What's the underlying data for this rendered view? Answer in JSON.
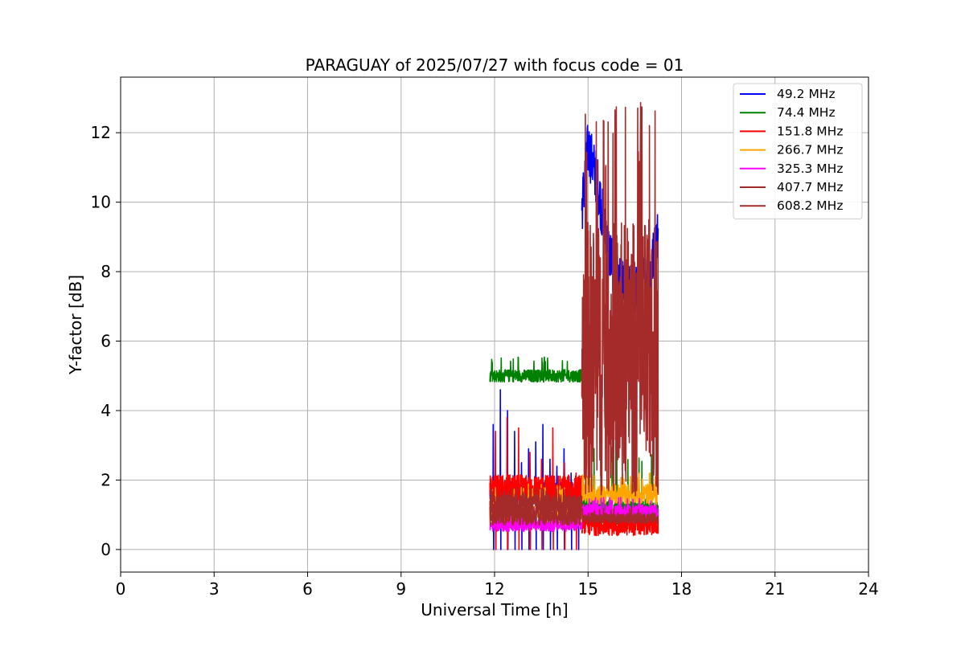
{
  "chart_data": {
    "type": "line",
    "title": "PARAGUAY of 2025/07/27 with focus code = 01",
    "xlabel": "Universal Time [h]",
    "ylabel": "Y-factor [dB]",
    "xlim": [
      0,
      24
    ],
    "ylim": [
      -0.65,
      13.6
    ],
    "xticks": [
      0,
      3,
      6,
      9,
      12,
      15,
      18,
      21,
      24
    ],
    "yticks": [
      0,
      2,
      4,
      6,
      8,
      10,
      12
    ],
    "grid": true,
    "legend_position": "top-right",
    "series": [
      {
        "name": " 49.2 MHz",
        "color": "#0000ff",
        "segments": [
          {
            "x_range": [
              11.85,
              14.8
            ],
            "base": 1.6,
            "noise": 0.35,
            "spikes": [
              3.6,
              4.6,
              4.0,
              3.4,
              2.5,
              2.9,
              3.1,
              3.6,
              2.6,
              2.4,
              2.9,
              2.2,
              1.9
            ],
            "spike_min": 0.0
          },
          {
            "x_range": [
              14.8,
              17.25
            ],
            "profile": [
              [
                14.8,
                9.8
              ],
              [
                15.0,
                11.6
              ],
              [
                15.3,
                10.6
              ],
              [
                15.6,
                8.8
              ],
              [
                16.0,
                7.6
              ],
              [
                16.5,
                7.4
              ],
              [
                17.0,
                8.0
              ],
              [
                17.25,
                9.1
              ]
            ],
            "noise": 0.8
          }
        ]
      },
      {
        "name": " 74.4 MHz",
        "color": "#008000",
        "segments": [
          {
            "x_range": [
              11.85,
              14.8
            ],
            "base": 5.0,
            "noise": 0.18,
            "peak": 5.55
          },
          {
            "x_range": [
              14.8,
              17.25
            ],
            "base": 1.1,
            "noise": 0.4,
            "peak": 3.1
          }
        ]
      },
      {
        "name": " 151.8 MHz",
        "color": "#ff0000",
        "segments": [
          {
            "x_range": [
              11.85,
              14.8
            ],
            "base": 1.7,
            "noise": 0.45,
            "spikes": [
              3.4,
              3.8,
              3.5,
              2.8,
              2.6,
              3.5,
              2.5,
              2.2
            ],
            "spike_min": 0.0
          },
          {
            "x_range": [
              14.8,
              17.25
            ],
            "base": 0.7,
            "noise": 0.3,
            "peak": 1.2
          }
        ]
      },
      {
        "name": " 266.7 MHz",
        "color": "#ffa500",
        "segments": [
          {
            "x_range": [
              11.85,
              14.8
            ],
            "base": 1.1,
            "noise": 0.25,
            "peak": 1.9
          },
          {
            "x_range": [
              14.8,
              17.25
            ],
            "base": 1.6,
            "noise": 0.3,
            "peak": 2.2
          }
        ]
      },
      {
        "name": " 325.3 MHz",
        "color": "#ff00ff",
        "segments": [
          {
            "x_range": [
              11.85,
              14.8
            ],
            "base": 0.7,
            "noise": 0.18,
            "peak": 1.2
          },
          {
            "x_range": [
              14.8,
              17.25
            ],
            "base": 1.1,
            "noise": 0.2,
            "peak": 1.5
          }
        ]
      },
      {
        "name": " 407.7 MHz",
        "color": "#a52a2a",
        "segments": [
          {
            "x_range": [
              11.85,
              14.8
            ],
            "base": 1.3,
            "noise": 0.3,
            "peak": 1.8
          },
          {
            "x_range": [
              14.8,
              17.25
            ],
            "base": 0.9,
            "noise": 0.15,
            "peak": 1.2
          }
        ]
      },
      {
        "name": " 608.2 MHz",
        "color": "#a52a2a",
        "segments": [
          {
            "x_range": [
              11.85,
              14.8
            ],
            "base": 1.0,
            "noise": 0.3,
            "peak": 1.6
          },
          {
            "x_range": [
              14.8,
              17.25
            ],
            "base": 5.5,
            "noise": 4.0,
            "peak": 12.95,
            "floor": 0.3
          }
        ]
      }
    ]
  }
}
